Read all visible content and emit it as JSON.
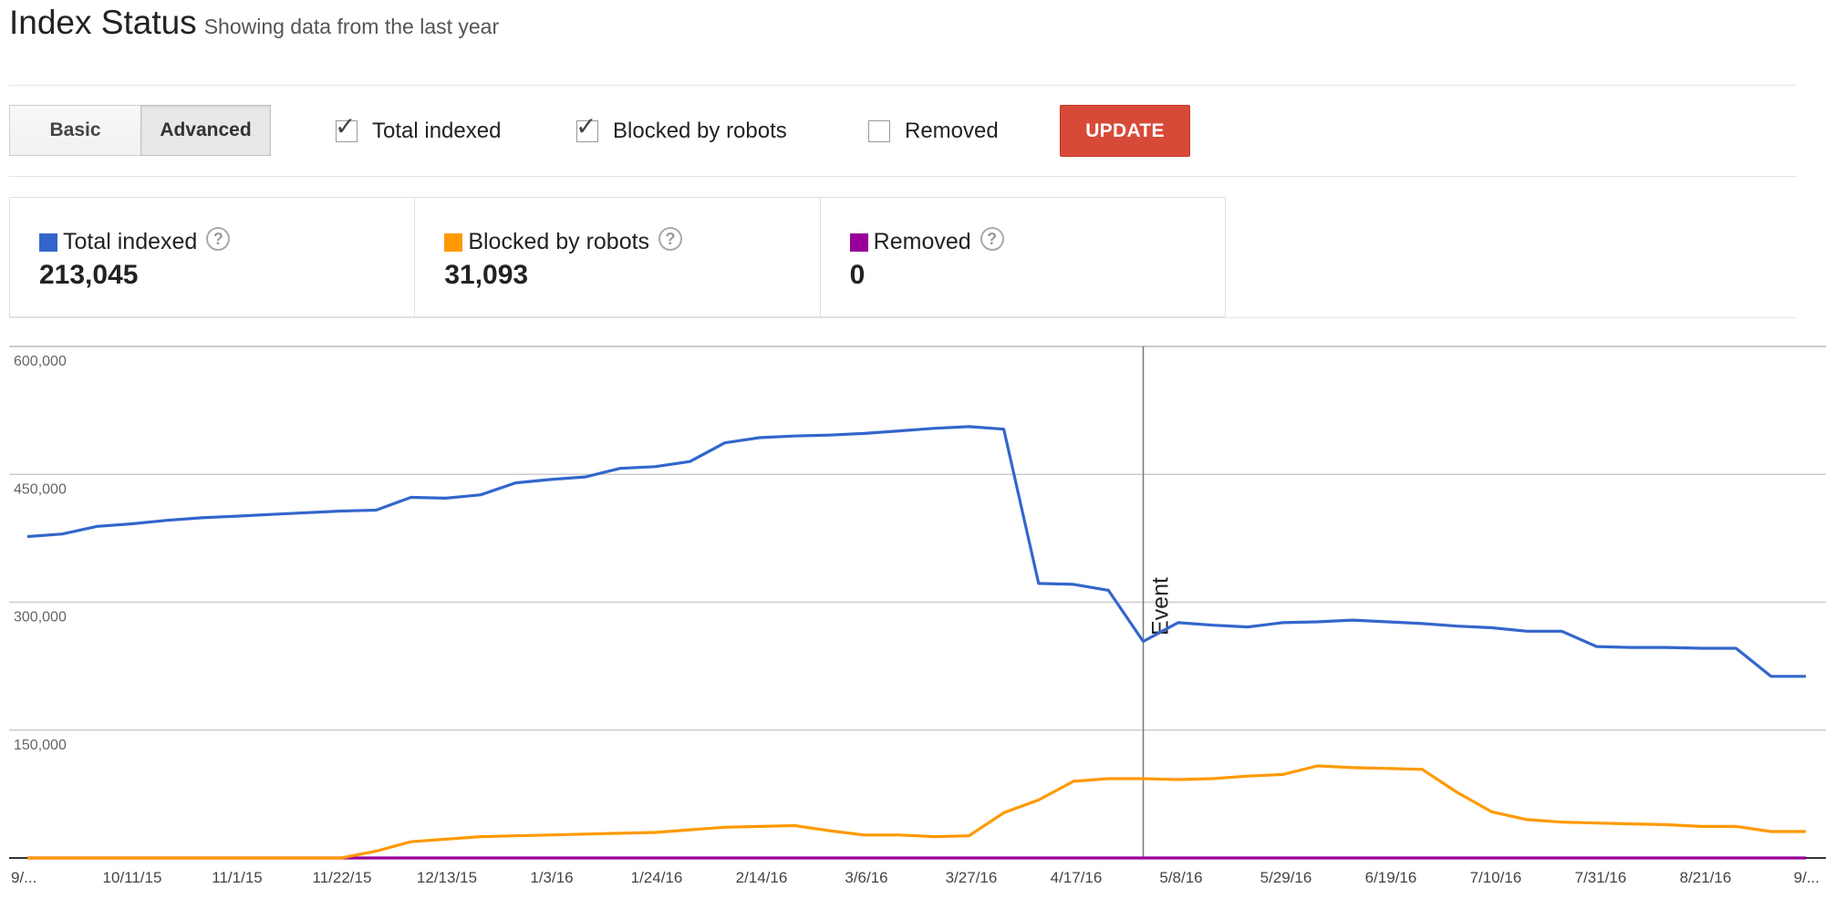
{
  "header": {
    "title": "Index Status",
    "subtitle": "Showing data from the last year"
  },
  "toggle": {
    "basic": "Basic",
    "advanced": "Advanced",
    "selected": "Advanced"
  },
  "filters": [
    {
      "label": "Total indexed",
      "checked": true
    },
    {
      "label": "Blocked by robots",
      "checked": true
    },
    {
      "label": "Removed",
      "checked": false
    }
  ],
  "update_label": "UPDATE",
  "stats": [
    {
      "label": "Total indexed",
      "value": "213,045",
      "color": "#3366cc"
    },
    {
      "label": "Blocked by robots",
      "value": "31,093",
      "color": "#ff9900"
    },
    {
      "label": "Removed",
      "value": "0",
      "color": "#990099"
    }
  ],
  "chart_data": {
    "type": "line",
    "ylim": [
      0,
      600000
    ],
    "yticks": [
      "600,000",
      "450,000",
      "300,000",
      "150,000"
    ],
    "yticks_values": [
      600000,
      450000,
      300000,
      150000
    ],
    "xticks": [
      "9/...",
      "10/11/15",
      "11/1/15",
      "11/22/15",
      "12/13/15",
      "1/3/16",
      "1/24/16",
      "2/14/16",
      "3/6/16",
      "3/27/16",
      "4/17/16",
      "5/8/16",
      "5/29/16",
      "6/19/16",
      "7/10/16",
      "7/31/16",
      "8/21/16",
      "9/..."
    ],
    "grid": true,
    "event": {
      "label": "Event",
      "x_index": 32
    },
    "series": [
      {
        "name": "Total indexed",
        "color": "#3366cc",
        "values": [
          377000,
          380000,
          389000,
          392000,
          396000,
          399000,
          401000,
          403000,
          405000,
          407000,
          408000,
          423000,
          422000,
          426000,
          440000,
          444000,
          447000,
          457000,
          459000,
          465000,
          487000,
          493000,
          495000,
          496000,
          498000,
          501000,
          504000,
          506000,
          503000,
          322000,
          321000,
          314000,
          254000,
          276000,
          273000,
          271000,
          276000,
          277000,
          279000,
          277000,
          275000,
          272000,
          270000,
          266000,
          266000,
          248000,
          247000,
          247000,
          246000,
          246000,
          213000,
          213000
        ]
      },
      {
        "name": "Blocked by robots",
        "color": "#ff9900",
        "values": [
          0,
          0,
          0,
          0,
          0,
          0,
          0,
          0,
          0,
          0,
          8000,
          19000,
          22000,
          25000,
          26000,
          27000,
          28000,
          29000,
          30000,
          33000,
          36000,
          37000,
          38000,
          32000,
          27000,
          27000,
          25000,
          26000,
          53000,
          68000,
          90000,
          93000,
          93000,
          92000,
          93000,
          96000,
          98000,
          108000,
          106000,
          105000,
          104000,
          77000,
          54000,
          45000,
          42000,
          41000,
          40000,
          39000,
          37000,
          37000,
          31000,
          31000
        ]
      },
      {
        "name": "Removed",
        "color": "#990099",
        "values": [
          0,
          0,
          0,
          0,
          0,
          0,
          0,
          0,
          0,
          0,
          0,
          0,
          0,
          0,
          0,
          0,
          0,
          0,
          0,
          0,
          0,
          0,
          0,
          0,
          0,
          0,
          0,
          0,
          0,
          0,
          0,
          0,
          0,
          0,
          0,
          0,
          0,
          0,
          0,
          0,
          0,
          0,
          0,
          0,
          0,
          0,
          0,
          0,
          0,
          0,
          0,
          0
        ]
      }
    ]
  }
}
